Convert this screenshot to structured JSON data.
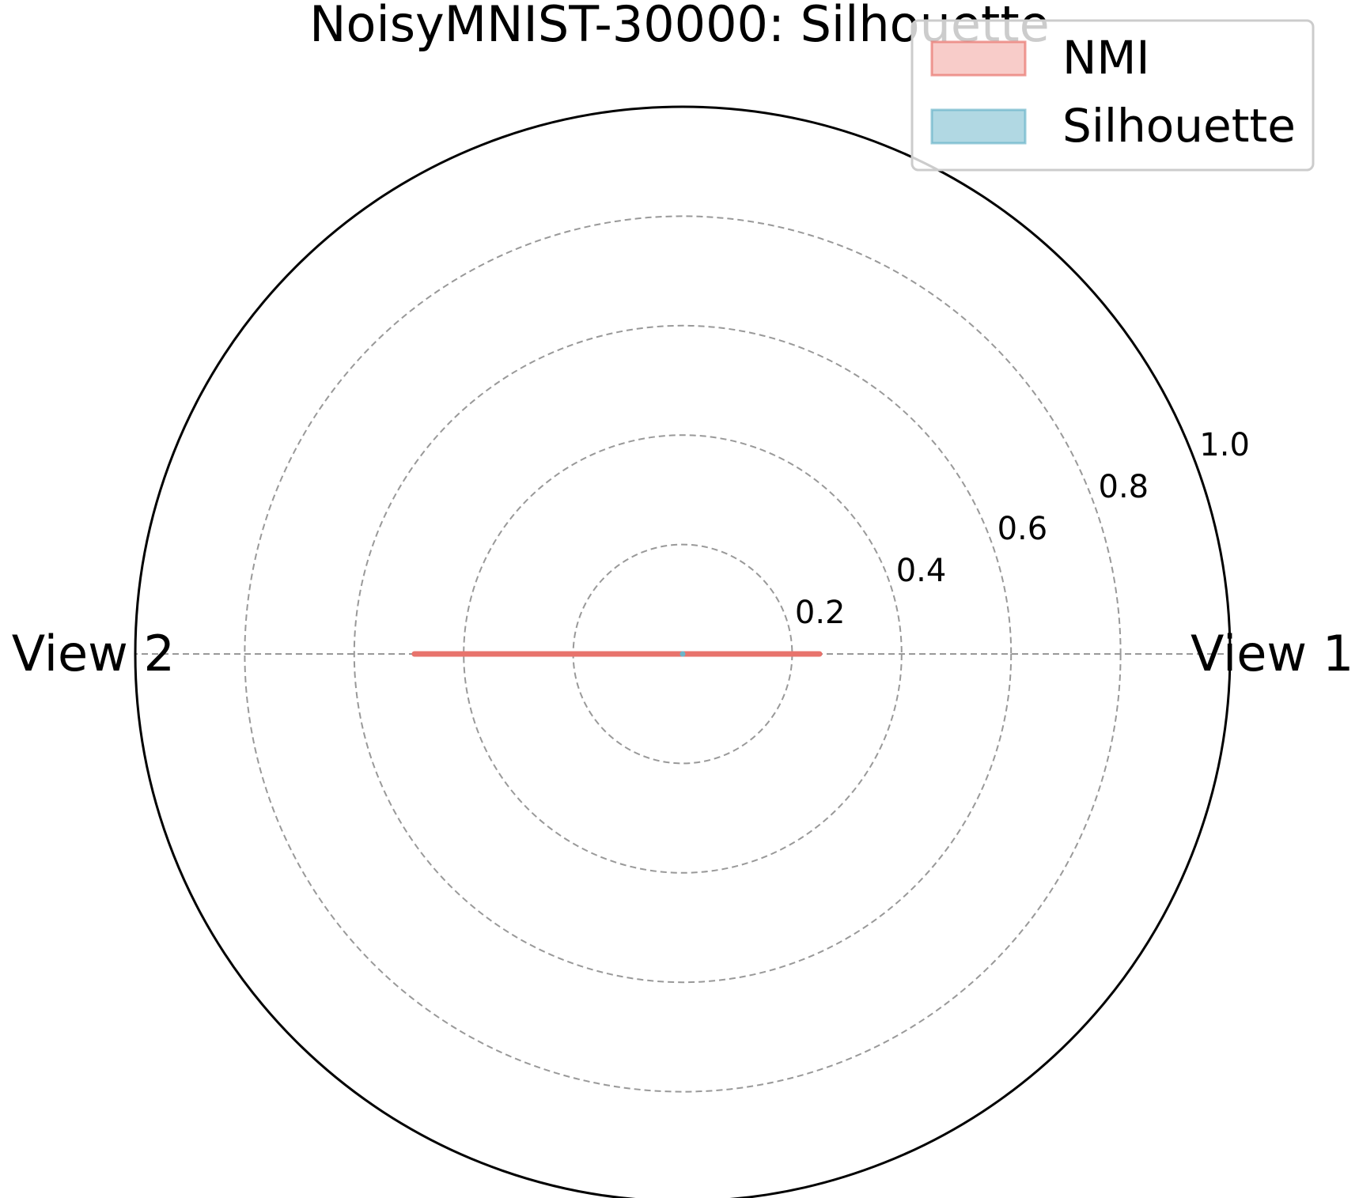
{
  "chart_data": {
    "type": "radar",
    "title": "NoisyMNIST-30000: Silhouette",
    "axes": [
      "View 1",
      "View 2"
    ],
    "rlim": [
      0,
      1.0
    ],
    "rticks": [
      0.2,
      0.4,
      0.6,
      0.8,
      1.0
    ],
    "rtick_labels": [
      "0.2",
      "0.4",
      "0.6",
      "0.8",
      "1.0"
    ],
    "grid": true,
    "legend_position": "top-right",
    "series": [
      {
        "name": "NMI",
        "values": [
          0.25,
          0.49
        ],
        "color": "#E8736C",
        "fill": "#F7C6C3"
      },
      {
        "name": "Silhouette",
        "values": [
          0,
          0
        ],
        "color": "#6BB5C9",
        "fill": "#A8D4E0"
      }
    ]
  }
}
